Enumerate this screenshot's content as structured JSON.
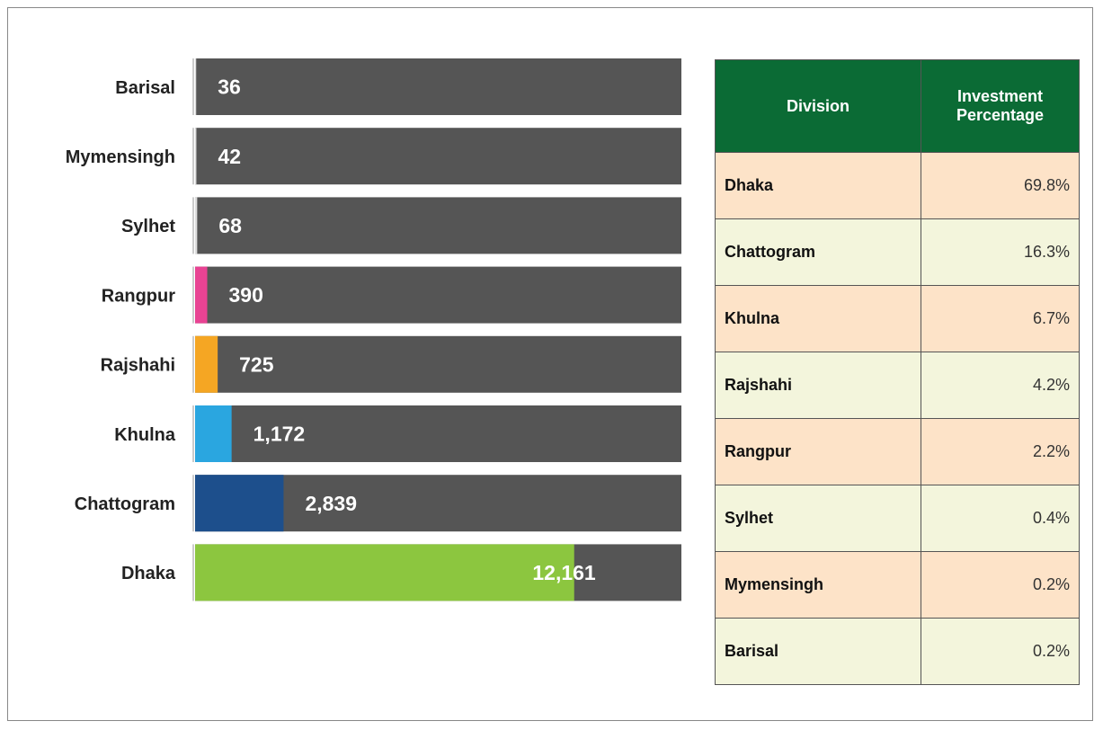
{
  "chart_data": {
    "type": "bar",
    "categories": [
      "Barisal",
      "Mymensingh",
      "Sylhet",
      "Rangpur",
      "Rajshahi",
      "Khulna",
      "Chattogram",
      "Dhaka"
    ],
    "values": [
      36,
      42,
      68,
      390,
      725,
      1172,
      2839,
      12161
    ],
    "value_labels": [
      "36",
      "42",
      "68",
      "390",
      "725",
      "1,172",
      "2,839",
      "12,161"
    ],
    "colors": [
      "#dddddd",
      "#dddddd",
      "#dddddd",
      "#e84393",
      "#f5a623",
      "#2aa6e0",
      "#1d4f8c",
      "#8cc63f"
    ],
    "track_color": "#555555",
    "xlim": [
      0,
      15600
    ]
  },
  "table": {
    "header": [
      "Division",
      "Investment Percentage"
    ],
    "rows": [
      [
        "Dhaka",
        "69.8%"
      ],
      [
        "Chattogram",
        "16.3%"
      ],
      [
        "Khulna",
        "6.7%"
      ],
      [
        "Rajshahi",
        "4.2%"
      ],
      [
        "Rangpur",
        "2.2%"
      ],
      [
        "Sylhet",
        "0.4%"
      ],
      [
        "Mymensingh",
        "0.2%"
      ],
      [
        "Barisal",
        "0.2%"
      ]
    ]
  }
}
